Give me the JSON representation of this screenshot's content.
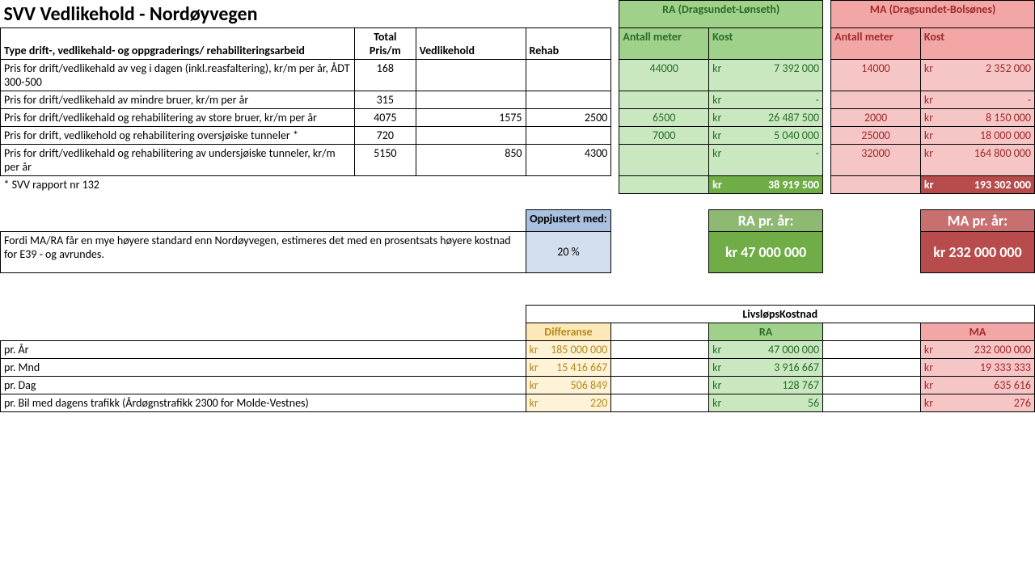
{
  "title": "SVV Vedlikehold - Nordøyvegen",
  "ra_title": "RA (Dragsundet-Lønseth)",
  "ma_title": "MA (Dragsundet-Bolsønes)",
  "colhdr": {
    "desc": "Type drift-, vedlikehald- og oppgraderings/ rehabiliteringsarbeid",
    "total": "Total Pris/m",
    "vedl": "Vedlikehold",
    "rehab": "Rehab",
    "meter": "Antall meter",
    "kost": "Kost"
  },
  "rows": [
    {
      "desc": "Pris for drift/vedlikehald av veg i dagen (inkl.reasfaltering), kr/m per år, ÅDT 300-500",
      "total": "168",
      "vedl": "",
      "rehab": "",
      "ra_m": "44000",
      "ra_k": "7 392 000",
      "ma_m": "14000",
      "ma_k": "2 352 000"
    },
    {
      "desc": "Pris for drift/vedlikehald av mindre bruer, kr/m per år",
      "total": "315",
      "vedl": "",
      "rehab": "",
      "ra_m": "",
      "ra_k": "-",
      "ma_m": "",
      "ma_k": "-"
    },
    {
      "desc": "Pris for drift/vedlikehald og rehabilitering av store bruer, kr/m per år",
      "total": "4075",
      "vedl": "1575",
      "rehab": "2500",
      "ra_m": "6500",
      "ra_k": "26 487 500",
      "ma_m": "2000",
      "ma_k": "8 150 000"
    },
    {
      "desc": "Pris for drift, vedlikehold og rehabilitering oversjøiske tunneler *",
      "total": "720",
      "vedl": "",
      "rehab": "",
      "ra_m": "7000",
      "ra_k": "5 040 000",
      "ma_m": "25000",
      "ma_k": "18 000 000"
    },
    {
      "desc": "Pris for drift/vedlikehald og rehabilitering av undersjøiske tunneler, kr/m per år",
      "total": "5150",
      "vedl": "850",
      "rehab": "4300",
      "ra_m": "",
      "ra_k": "-",
      "ma_m": "32000",
      "ma_k": "164 800 000"
    }
  ],
  "footnote": "* SVV rapport nr 132",
  "ra_total": "38 919 500",
  "ma_total": "193 302 000",
  "adj": {
    "label": "Oppjustert med:",
    "value": "20 %",
    "note": "Fordi MA/RA får en mye høyere standard enn Nordøyvegen, estimeres det med en prosentsats høyere kostnad for E39 - og avrundes.",
    "ra_label": "RA pr. år:",
    "ra_value": "kr   47 000 000",
    "ma_label": "MA pr. år:",
    "ma_value": "kr   232 000 000"
  },
  "life": {
    "title": "LivsløpsKostnad",
    "diff": "Differanse",
    "ra": "RA",
    "ma": "MA",
    "rows": [
      {
        "label": "pr. År",
        "diff": "185 000 000",
        "ra": "47 000 000",
        "ma": "232 000 000"
      },
      {
        "label": "pr. Mnd",
        "diff": "15 416 667",
        "ra": "3 916 667",
        "ma": "19 333 333"
      },
      {
        "label": "pr. Dag",
        "diff": "506 849",
        "ra": "128 767",
        "ma": "635 616"
      },
      {
        "label": "pr. Bil med dagens trafikk (Årdøgnstrafikk 2300 for Molde-Vestnes)",
        "diff": "220",
        "ra": "56",
        "ma": "276"
      }
    ]
  },
  "kr": "kr"
}
